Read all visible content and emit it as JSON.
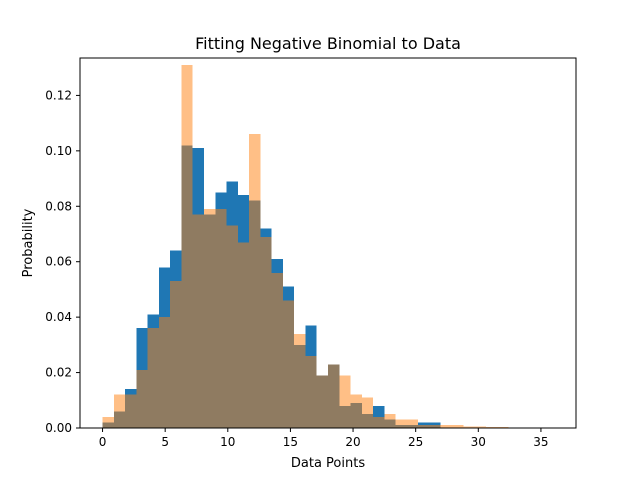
{
  "chart_data": {
    "type": "bar",
    "title": "Fitting Negative Binomial to Data",
    "xlabel": "Data Points",
    "ylabel": "Probability",
    "xlim": [
      -1.8,
      37.8
    ],
    "ylim": [
      0,
      0.1335
    ],
    "xticks": [
      0,
      5,
      10,
      15,
      20,
      25,
      30,
      35
    ],
    "xtick_labels": [
      "0",
      "5",
      "10",
      "15",
      "20",
      "25",
      "30",
      "35"
    ],
    "yticks": [
      0.0,
      0.02,
      0.04,
      0.06,
      0.08,
      0.1,
      0.12
    ],
    "ytick_labels": [
      "0.00",
      "0.02",
      "0.04",
      "0.06",
      "0.08",
      "0.10",
      "0.12"
    ],
    "grid": false,
    "series": [
      {
        "color": "#1f77b4",
        "opacity": 1.0,
        "bin_width": 0.9,
        "bins": [
          {
            "x": 0.0,
            "y": 0.002
          },
          {
            "x": 0.9,
            "y": 0.006
          },
          {
            "x": 1.8,
            "y": 0.014
          },
          {
            "x": 2.7,
            "y": 0.036
          },
          {
            "x": 3.6,
            "y": 0.041
          },
          {
            "x": 4.5,
            "y": 0.058
          },
          {
            "x": 5.4,
            "y": 0.064
          },
          {
            "x": 6.3,
            "y": 0.102
          },
          {
            "x": 7.2,
            "y": 0.101
          },
          {
            "x": 8.1,
            "y": 0.077
          },
          {
            "x": 9.0,
            "y": 0.085
          },
          {
            "x": 9.9,
            "y": 0.089
          },
          {
            "x": 10.8,
            "y": 0.084
          },
          {
            "x": 11.7,
            "y": 0.082
          },
          {
            "x": 12.6,
            "y": 0.072
          },
          {
            "x": 13.5,
            "y": 0.061
          },
          {
            "x": 14.4,
            "y": 0.051
          },
          {
            "x": 15.3,
            "y": 0.03
          },
          {
            "x": 16.2,
            "y": 0.037
          },
          {
            "x": 17.1,
            "y": 0.019
          },
          {
            "x": 18.0,
            "y": 0.023
          },
          {
            "x": 18.9,
            "y": 0.008
          },
          {
            "x": 19.8,
            "y": 0.009
          },
          {
            "x": 20.7,
            "y": 0.005
          },
          {
            "x": 21.6,
            "y": 0.008
          },
          {
            "x": 22.5,
            "y": 0.003
          },
          {
            "x": 23.4,
            "y": 0.001
          },
          {
            "x": 24.3,
            "y": 0.001
          },
          {
            "x": 25.2,
            "y": 0.002
          },
          {
            "x": 26.1,
            "y": 0.002
          }
        ]
      },
      {
        "color": "#ff7f0e",
        "opacity": 0.5,
        "bin_width": 0.9,
        "bins": [
          {
            "x": 0.0,
            "y": 0.004
          },
          {
            "x": 0.9,
            "y": 0.012
          },
          {
            "x": 1.8,
            "y": 0.012
          },
          {
            "x": 2.7,
            "y": 0.021
          },
          {
            "x": 3.6,
            "y": 0.036
          },
          {
            "x": 4.5,
            "y": 0.04
          },
          {
            "x": 5.4,
            "y": 0.053
          },
          {
            "x": 6.3,
            "y": 0.131
          },
          {
            "x": 7.2,
            "y": 0.077
          },
          {
            "x": 8.1,
            "y": 0.079
          },
          {
            "x": 9.0,
            "y": 0.079
          },
          {
            "x": 9.9,
            "y": 0.073
          },
          {
            "x": 10.8,
            "y": 0.067
          },
          {
            "x": 11.7,
            "y": 0.106
          },
          {
            "x": 12.6,
            "y": 0.069
          },
          {
            "x": 13.5,
            "y": 0.056
          },
          {
            "x": 14.4,
            "y": 0.046
          },
          {
            "x": 15.3,
            "y": 0.034
          },
          {
            "x": 16.2,
            "y": 0.026
          },
          {
            "x": 17.1,
            "y": 0.019
          },
          {
            "x": 18.0,
            "y": 0.023
          },
          {
            "x": 18.9,
            "y": 0.019
          },
          {
            "x": 19.8,
            "y": 0.012
          },
          {
            "x": 20.7,
            "y": 0.011
          },
          {
            "x": 21.6,
            "y": 0.004
          },
          {
            "x": 22.5,
            "y": 0.005
          },
          {
            "x": 23.4,
            "y": 0.003
          },
          {
            "x": 24.3,
            "y": 0.003
          },
          {
            "x": 25.2,
            "y": 0.001
          },
          {
            "x": 26.1,
            "y": 0.001
          },
          {
            "x": 27.0,
            "y": 0.001
          },
          {
            "x": 27.9,
            "y": 0.001
          },
          {
            "x": 28.8,
            "y": 0.0005
          },
          {
            "x": 29.7,
            "y": 0.0005
          },
          {
            "x": 30.6,
            "y": 0.0003
          },
          {
            "x": 31.5,
            "y": 0.0003
          },
          {
            "x": 32.4,
            "y": 0.0002
          },
          {
            "x": 33.3,
            "y": 0.0002
          },
          {
            "x": 34.2,
            "y": 0.0001
          },
          {
            "x": 35.1,
            "y": 0.0001
          }
        ]
      }
    ]
  }
}
